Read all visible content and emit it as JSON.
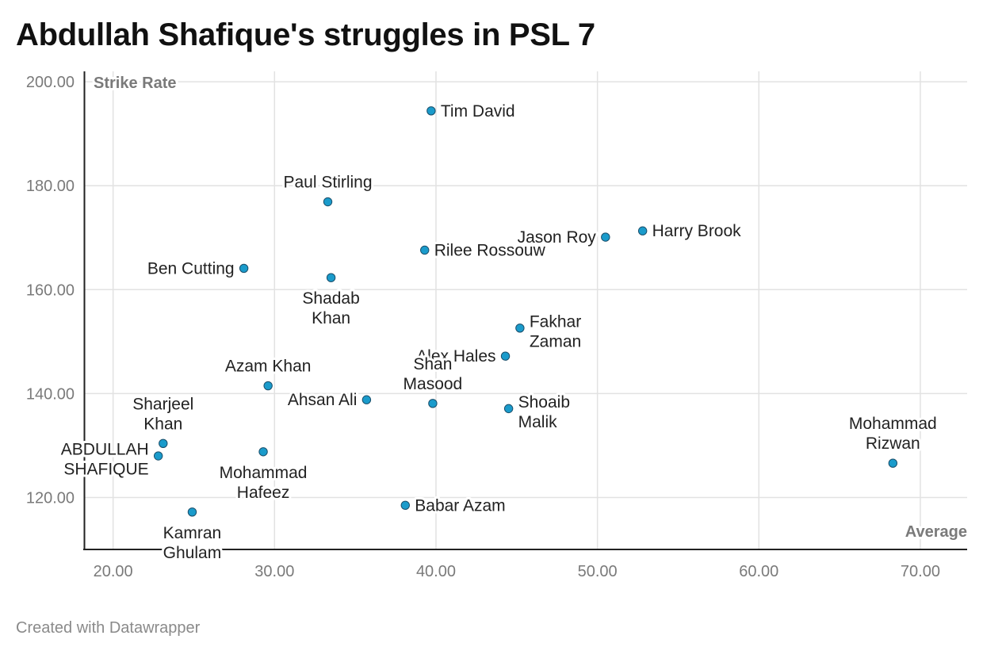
{
  "title": "Abdullah Shafique's struggles in PSL 7",
  "footer": "Created with Datawrapper",
  "colors": {
    "point_fill": "#1a9bcb",
    "point_stroke": "#1a4f6b",
    "grid": "#e2e2e2",
    "axis": "#222222"
  },
  "chart_data": {
    "type": "scatter",
    "xlabel": "Average",
    "ylabel": "Strike Rate",
    "xlim": [
      18.2,
      72.9
    ],
    "ylim": [
      110,
      202
    ],
    "x_ticks": [
      "20.00",
      "30.00",
      "40.00",
      "50.00",
      "60.00",
      "70.00"
    ],
    "y_ticks": [
      "120.00",
      "140.00",
      "160.00",
      "180.00",
      "200.00"
    ],
    "grid": true,
    "points": [
      {
        "name": "Tim David",
        "lines": [
          "Tim David"
        ],
        "x": 39.7,
        "y": 194.4,
        "pos": "right"
      },
      {
        "name": "Paul Stirling",
        "lines": [
          "Paul Stirling"
        ],
        "x": 33.3,
        "y": 176.9,
        "pos": "above"
      },
      {
        "name": "Harry Brook",
        "lines": [
          "Harry Brook"
        ],
        "x": 52.8,
        "y": 171.3,
        "pos": "right"
      },
      {
        "name": "Jason Roy",
        "lines": [
          "Jason Roy"
        ],
        "x": 50.5,
        "y": 170.1,
        "pos": "left"
      },
      {
        "name": "Rilee Rossouw",
        "lines": [
          "Rilee Rossouw"
        ],
        "x": 39.3,
        "y": 167.6,
        "pos": "right"
      },
      {
        "name": "Ben Cutting",
        "lines": [
          "Ben Cutting"
        ],
        "x": 28.1,
        "y": 164.1,
        "pos": "left"
      },
      {
        "name": "Shadab Khan",
        "lines": [
          "Shadab",
          "Khan"
        ],
        "x": 33.5,
        "y": 162.3,
        "pos": "below"
      },
      {
        "name": "Fakhar Zaman",
        "lines": [
          "Fakhar",
          "Zaman"
        ],
        "x": 45.2,
        "y": 152.6,
        "pos": "right"
      },
      {
        "name": "Alex Hales",
        "lines": [
          "Alex Hales"
        ],
        "x": 44.3,
        "y": 147.2,
        "pos": "left"
      },
      {
        "name": "Azam Khan",
        "lines": [
          "Azam Khan"
        ],
        "x": 29.6,
        "y": 141.5,
        "pos": "above"
      },
      {
        "name": "Ahsan Ali",
        "lines": [
          "Ahsan Ali"
        ],
        "x": 35.7,
        "y": 138.8,
        "pos": "left"
      },
      {
        "name": "Shan Masood",
        "lines": [
          "Shan",
          "Masood"
        ],
        "x": 39.8,
        "y": 138.1,
        "pos": "above"
      },
      {
        "name": "Shoaib Malik",
        "lines": [
          "Shoaib",
          "Malik"
        ],
        "x": 44.5,
        "y": 137.1,
        "pos": "right"
      },
      {
        "name": "Sharjeel Khan",
        "lines": [
          "Sharjeel",
          "Khan"
        ],
        "x": 23.1,
        "y": 130.4,
        "pos": "above"
      },
      {
        "name": "Mohammad Hafeez",
        "lines": [
          "Mohammad",
          "Hafeez"
        ],
        "x": 29.3,
        "y": 128.8,
        "pos": "below"
      },
      {
        "name": "ABDULLAH SHAFIQUE",
        "lines": [
          "ABDULLAH",
          "SHAFIQUE"
        ],
        "x": 22.8,
        "y": 128.0,
        "pos": "left"
      },
      {
        "name": "Mohammad Rizwan",
        "lines": [
          "Mohammad",
          "Rizwan"
        ],
        "x": 68.3,
        "y": 126.6,
        "pos": "above"
      },
      {
        "name": "Babar Azam",
        "lines": [
          "Babar Azam"
        ],
        "x": 38.1,
        "y": 118.5,
        "pos": "right"
      },
      {
        "name": "Kamran Ghulam",
        "lines": [
          "Kamran",
          "Ghulam"
        ],
        "x": 24.9,
        "y": 117.2,
        "pos": "below"
      }
    ]
  }
}
